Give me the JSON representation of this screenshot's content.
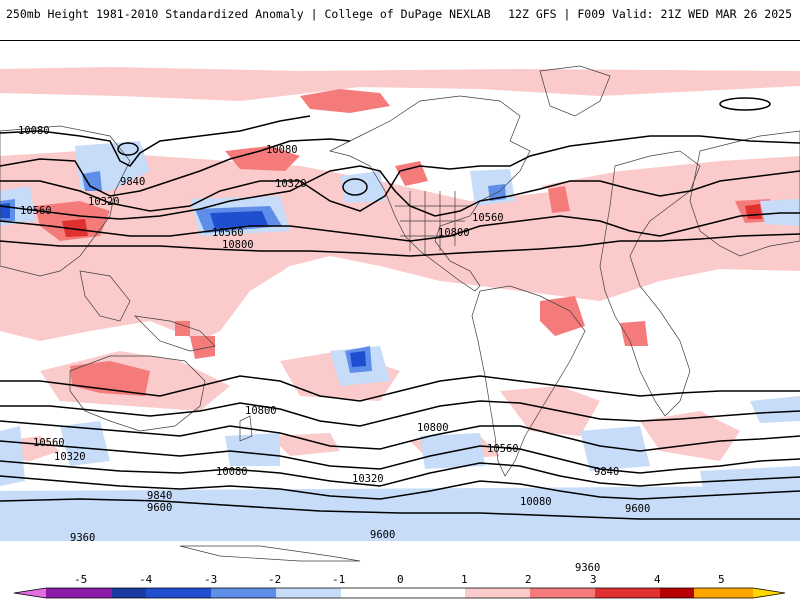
{
  "header": {
    "left": "250mb Height 1981-2010 Standardized Anomaly | College of DuPage NEXLAB",
    "right": "12Z GFS | F009 Valid: 21Z WED MAR 26 2025"
  },
  "map": {
    "contour_labels": [
      "10080",
      "9840",
      "10320",
      "10560",
      "10800",
      "10560",
      "10080",
      "10320",
      "10560",
      "10800",
      "9360",
      "9600",
      "10320",
      "10560",
      "10800",
      "10080",
      "9840",
      "9360",
      "9600",
      "10320",
      "10560",
      "10080",
      "9840",
      "10800",
      "9600"
    ],
    "anomaly_colors": {
      "neg1": "#c6dcf8",
      "neg2": "#5f8ee8",
      "neg3": "#1f4fd0",
      "pos1": "#fbcaca",
      "pos2": "#f57b7b",
      "pos3": "#e03030"
    }
  },
  "colorbar": {
    "ticks": [
      "-5",
      "-4",
      "-3",
      "-2",
      "-1",
      "0",
      "1",
      "2",
      "3",
      "4",
      "5"
    ],
    "colors": [
      "#e070e0",
      "#8a1aa8",
      "#1a3aa0",
      "#3a68d8",
      "#6a98ee",
      "#c6dcf8",
      "#ffffff",
      "#fbcaca",
      "#f57b7b",
      "#e03030",
      "#b80000",
      "#ffa500",
      "#ffd700"
    ]
  }
}
